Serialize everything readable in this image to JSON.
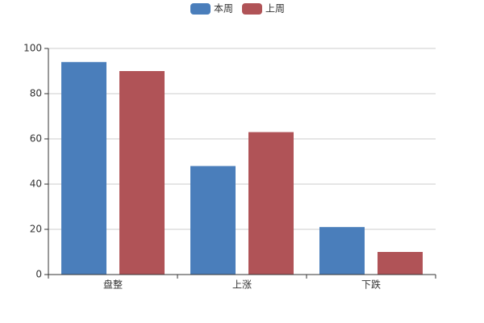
{
  "chart_data": {
    "type": "bar",
    "categories": [
      "盘整",
      "上涨",
      "下跌"
    ],
    "series": [
      {
        "name": "本周",
        "color": "#4a7ebb",
        "values": [
          94,
          48,
          21
        ]
      },
      {
        "name": "上周",
        "color": "#b05357",
        "values": [
          90,
          63,
          10
        ]
      }
    ],
    "ylim": [
      0,
      100
    ],
    "yticks": [
      0,
      20,
      40,
      60,
      80,
      100
    ],
    "grid": true,
    "legend": "top"
  }
}
